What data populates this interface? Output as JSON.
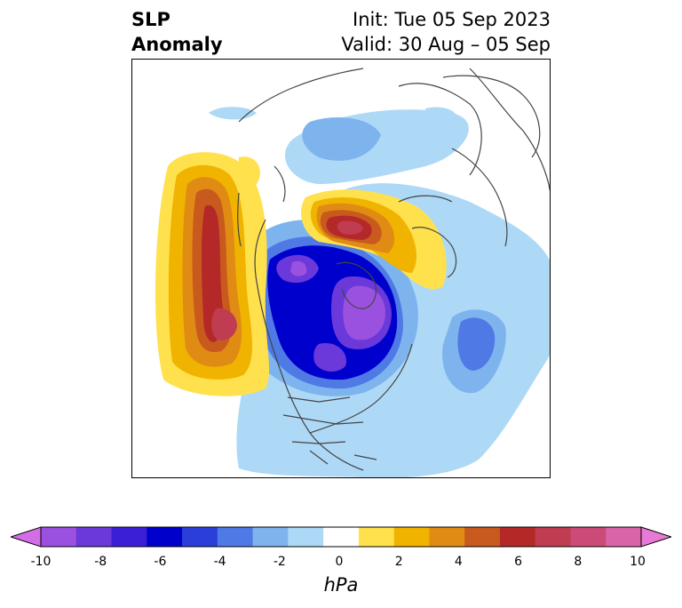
{
  "header": {
    "title_line1": "SLP",
    "title_line2": "Anomaly",
    "init": "Init: Tue 05 Sep 2023",
    "valid": "Valid: 30 Aug – 05 Sep"
  },
  "colorbar": {
    "units": "hPa",
    "ticks": [
      "-10",
      "-8",
      "-6",
      "-4",
      "-2",
      "0",
      "2",
      "4",
      "6",
      "8",
      "10"
    ],
    "colors": [
      "#d36ee6",
      "#9b51e0",
      "#6b38d9",
      "#3a1fd6",
      "#0000cc",
      "#2a3fd9",
      "#4f79e4",
      "#7eb4ee",
      "#add9f7",
      "#ffffff",
      "#ffe14d",
      "#f0b400",
      "#e08c14",
      "#c85a1e",
      "#b42828",
      "#c03c50",
      "#cc4a78",
      "#d964a8",
      "#e879d6"
    ]
  }
}
